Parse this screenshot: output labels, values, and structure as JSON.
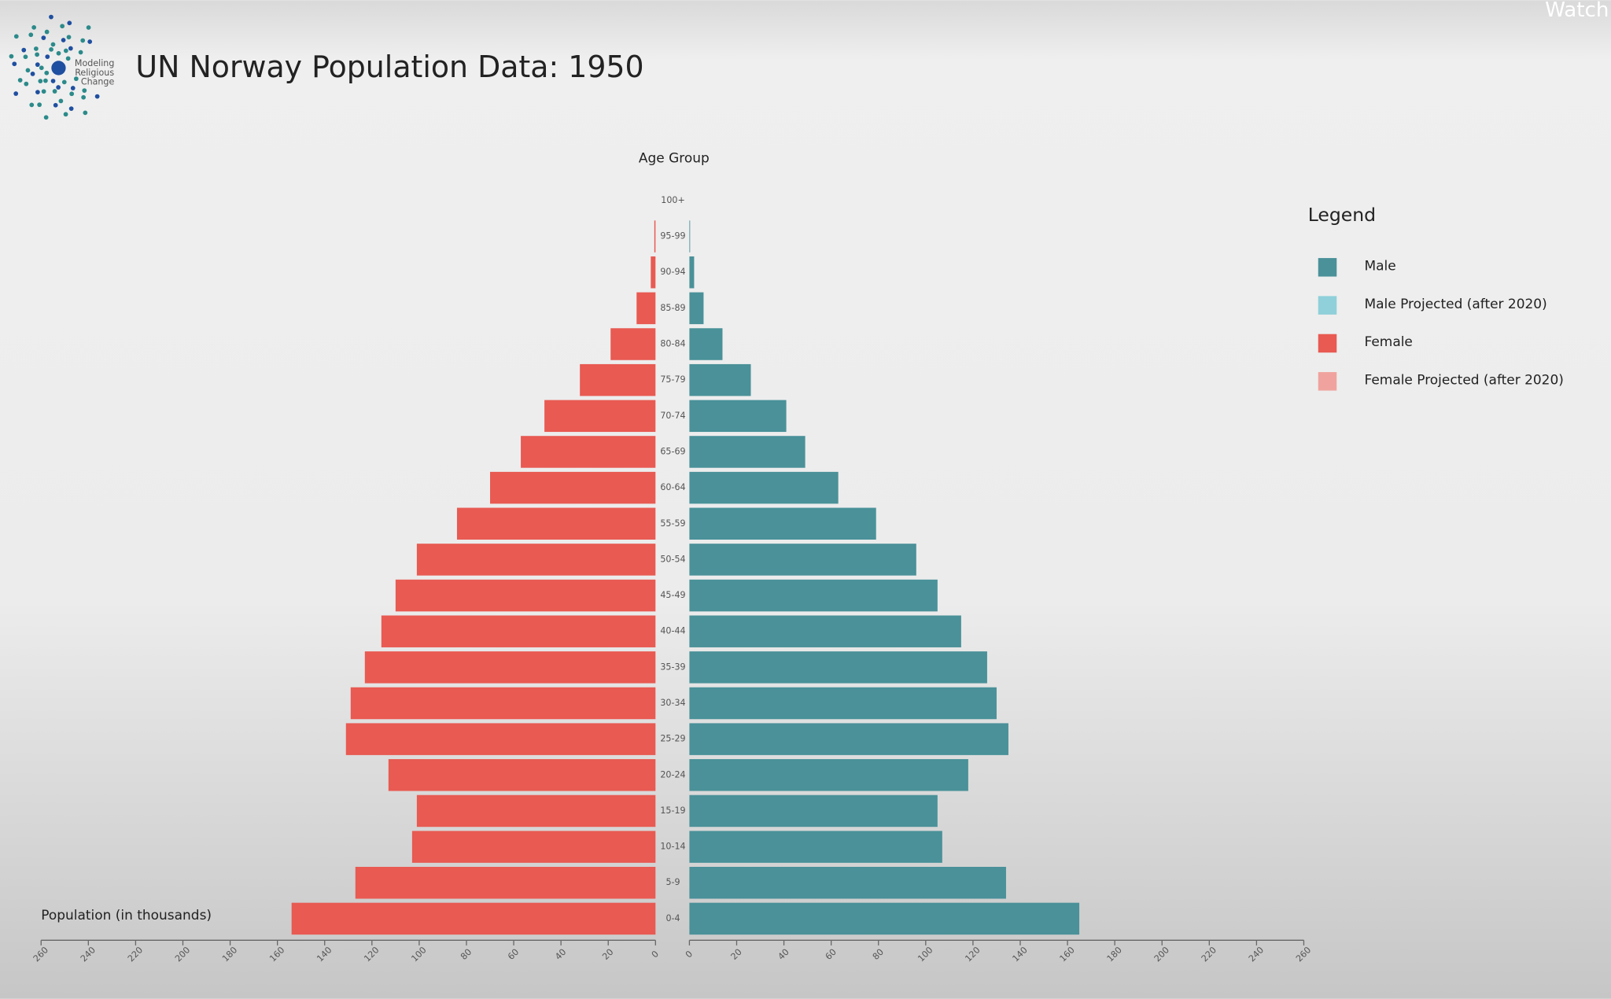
{
  "header": {
    "logo_text": [
      "Modeling",
      "Religious",
      "Change"
    ],
    "overlay": "Watch"
  },
  "chart_data": {
    "type": "pyramid",
    "title": "UN Norway Population Data: 1950",
    "category_axis_label": "Age Group",
    "value_axis_label": "Population (in thousands)",
    "legend_title": "Legend",
    "legend": "right",
    "categories": [
      "0-4",
      "5-9",
      "10-14",
      "15-19",
      "20-24",
      "25-29",
      "30-34",
      "35-39",
      "40-44",
      "45-49",
      "50-54",
      "55-59",
      "60-64",
      "65-69",
      "70-74",
      "75-79",
      "80-84",
      "85-89",
      "90-94",
      "95-99",
      "100+"
    ],
    "series": [
      {
        "name": "Male",
        "color": "#4a9199",
        "values": [
          165,
          134,
          107,
          105,
          118,
          135,
          130,
          126,
          115,
          105,
          96,
          79,
          63,
          49,
          41,
          26,
          14,
          6,
          2,
          0.3,
          0
        ]
      },
      {
        "name": "Male Projected (after 2020)",
        "color": "#8fd0da",
        "values": [
          null,
          null,
          null,
          null,
          null,
          null,
          null,
          null,
          null,
          null,
          null,
          null,
          null,
          null,
          null,
          null,
          null,
          null,
          null,
          null,
          null
        ]
      },
      {
        "name": "Female",
        "color": "#e85a52",
        "values": [
          154,
          127,
          103,
          101,
          113,
          131,
          129,
          123,
          116,
          110,
          101,
          84,
          70,
          57,
          47,
          32,
          19,
          8,
          2,
          0.5,
          0
        ]
      },
      {
        "name": "Female Projected (after 2020)",
        "color": "#f0a39e",
        "values": [
          null,
          null,
          null,
          null,
          null,
          null,
          null,
          null,
          null,
          null,
          null,
          null,
          null,
          null,
          null,
          null,
          null,
          null,
          null,
          null,
          null
        ]
      }
    ],
    "xlim": [
      0,
      260
    ],
    "xticks": [
      0,
      20,
      40,
      60,
      80,
      100,
      120,
      140,
      160,
      180,
      200,
      220,
      240,
      260
    ]
  }
}
